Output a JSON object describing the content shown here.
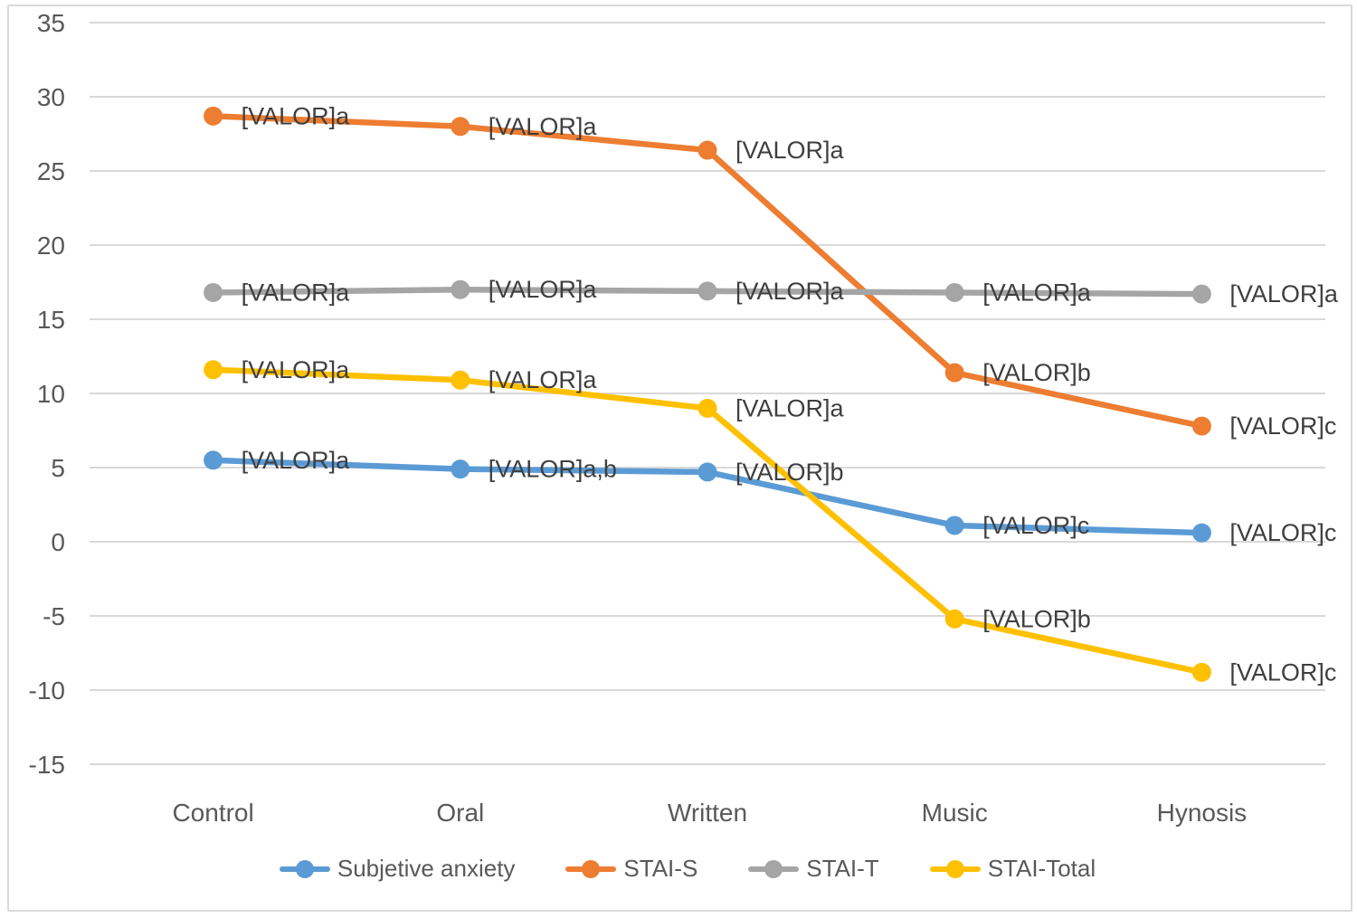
{
  "chart_data": {
    "type": "line",
    "title": "",
    "xlabel": "",
    "ylabel": "",
    "categories": [
      "Control",
      "Oral",
      "Written",
      "Music",
      "Hynosis"
    ],
    "series": [
      {
        "name": "Subjetive anxiety",
        "color": "#5B9BD5",
        "values": [
          5.5,
          4.9,
          4.7,
          1.1,
          0.6
        ],
        "point_labels": [
          "[VALOR]a",
          "[VALOR]a,b",
          "[VALOR]b",
          "[VALOR]c",
          "[VALOR]c"
        ]
      },
      {
        "name": "STAI-S",
        "color": "#ED7D31",
        "values": [
          28.7,
          28.0,
          26.4,
          11.4,
          7.8
        ],
        "point_labels": [
          "[VALOR]a",
          "[VALOR]a",
          "[VALOR]a",
          "[VALOR]b",
          "[VALOR]c"
        ]
      },
      {
        "name": "STAI-T",
        "color": "#A5A5A5",
        "values": [
          16.8,
          17.0,
          16.9,
          16.8,
          16.7
        ],
        "point_labels": [
          "[VALOR]a",
          "[VALOR]a",
          "[VALOR]a",
          "[VALOR]a",
          "[VALOR]a"
        ]
      },
      {
        "name": "STAI-Total",
        "color": "#FFC000",
        "values": [
          11.6,
          10.9,
          9.0,
          -5.2,
          -8.8
        ],
        "point_labels": [
          "[VALOR]a",
          "[VALOR]a",
          "[VALOR]a",
          "[VALOR]b",
          "[VALOR]c"
        ]
      }
    ],
    "yticks": [
      35,
      30,
      25,
      20,
      15,
      10,
      5,
      0,
      -5,
      -10,
      -15
    ],
    "ylim": [
      -15,
      35
    ],
    "grid": "horizontal",
    "legend_position": "bottom",
    "marker": "circle",
    "colors": {
      "background": "#FFFFFF",
      "frame_border": "#D9D9D9",
      "gridline": "#D9D9D9",
      "tick_text": "#595959",
      "category_text": "#595959",
      "data_label_text": "#3F3F3F"
    }
  }
}
